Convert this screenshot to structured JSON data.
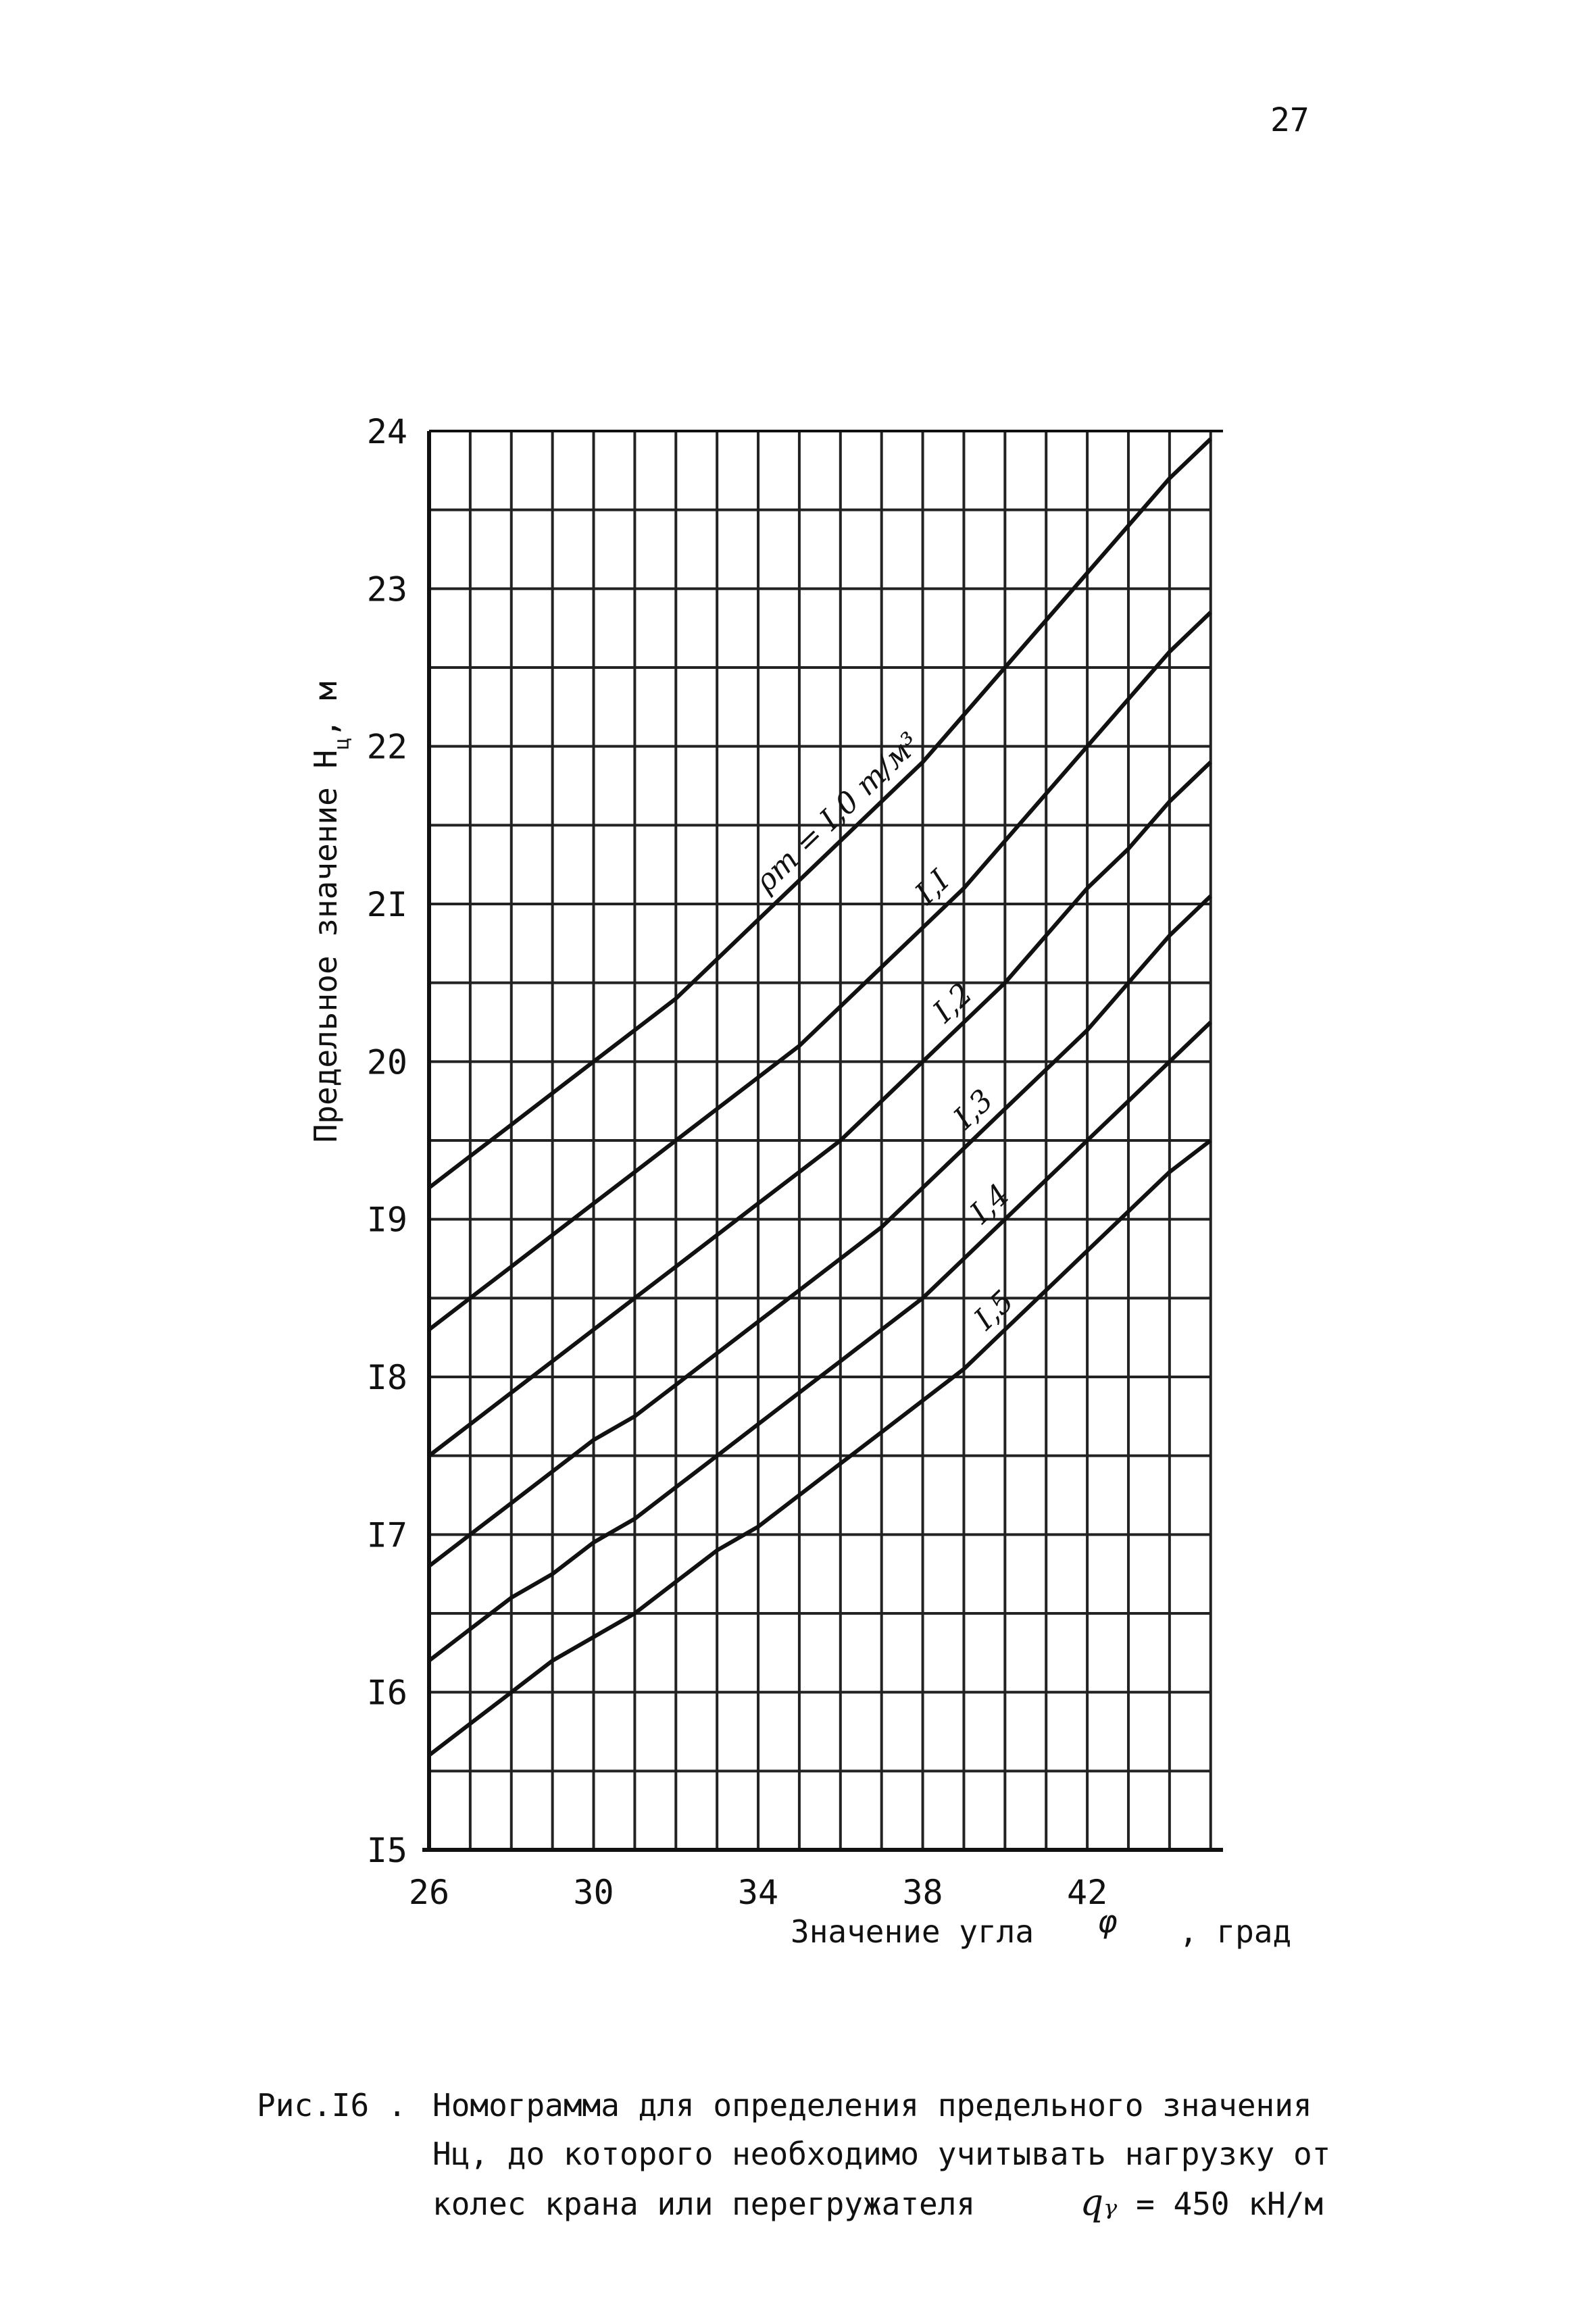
{
  "page": {
    "number": "27"
  },
  "chart_data": {
    "type": "line",
    "x": [
      26,
      27,
      28,
      29,
      30,
      31,
      32,
      33,
      34,
      35,
      36,
      37,
      38,
      39,
      40,
      41,
      42,
      43,
      44,
      45
    ],
    "xticks": [
      "26",
      "30",
      "34",
      "38",
      "42"
    ],
    "yticks": [
      "I5",
      "I6",
      "I7",
      "I8",
      "I9",
      "20",
      "2I",
      "22",
      "23",
      "24"
    ],
    "xlim": [
      26,
      45.3
    ],
    "ylim": [
      15,
      24
    ],
    "xlabel": "Значение угла",
    "xlabel_symbol": "φ",
    "xlabel_unit": ", град",
    "ylabel": "Предельное значение H",
    "ylabel_sub": "ц",
    "ylabel_unit": ", м",
    "grid": true,
    "series": [
      {
        "name": "ρm = I,0 т/м³",
        "label": "ρm = I,0 т/м³",
        "values": [
          19.2,
          19.4,
          19.6,
          19.8,
          20.0,
          20.2,
          20.4,
          20.65,
          20.9,
          21.15,
          21.4,
          21.65,
          21.9,
          22.2,
          22.5,
          22.8,
          23.1,
          23.4,
          23.7,
          23.95
        ]
      },
      {
        "name": "I,I",
        "label": "I,I",
        "values": [
          18.3,
          18.5,
          18.7,
          18.9,
          19.1,
          19.3,
          19.5,
          19.7,
          19.9,
          20.1,
          20.35,
          20.6,
          20.85,
          21.1,
          21.4,
          21.7,
          22.0,
          22.3,
          22.6,
          22.85
        ]
      },
      {
        "name": "I,2",
        "label": "I,2",
        "values": [
          17.5,
          17.7,
          17.9,
          18.1,
          18.3,
          18.5,
          18.7,
          18.9,
          19.1,
          19.3,
          19.5,
          19.75,
          20.0,
          20.25,
          20.5,
          20.8,
          21.1,
          21.35,
          21.65,
          21.9
        ]
      },
      {
        "name": "I,3",
        "label": "I,3",
        "values": [
          16.8,
          17.0,
          17.2,
          17.4,
          17.6,
          17.75,
          17.95,
          18.15,
          18.35,
          18.55,
          18.75,
          18.95,
          19.2,
          19.45,
          19.7,
          19.95,
          20.2,
          20.5,
          20.8,
          21.05
        ]
      },
      {
        "name": "I,4",
        "label": "I,4",
        "values": [
          16.2,
          16.4,
          16.6,
          16.75,
          16.95,
          17.1,
          17.3,
          17.5,
          17.7,
          17.9,
          18.1,
          18.3,
          18.5,
          18.75,
          19.0,
          19.25,
          19.5,
          19.75,
          20.0,
          20.25
        ]
      },
      {
        "name": "I,5",
        "label": "I,5",
        "values": [
          15.6,
          15.8,
          16.0,
          16.2,
          16.35,
          16.5,
          16.7,
          16.9,
          17.05,
          17.25,
          17.45,
          17.65,
          17.85,
          18.05,
          18.3,
          18.55,
          18.8,
          19.05,
          19.3,
          19.5
        ]
      }
    ]
  },
  "caption": {
    "prefix": "Рис.I6 .",
    "line1": "Номограмма для определения предельного значения",
    "line2": "Hц, до которого необходимо учитывать нагрузку от",
    "line3": "колес крана или перегружателя",
    "symbol": "qᵧ",
    "value": "= 450 кН/м"
  }
}
